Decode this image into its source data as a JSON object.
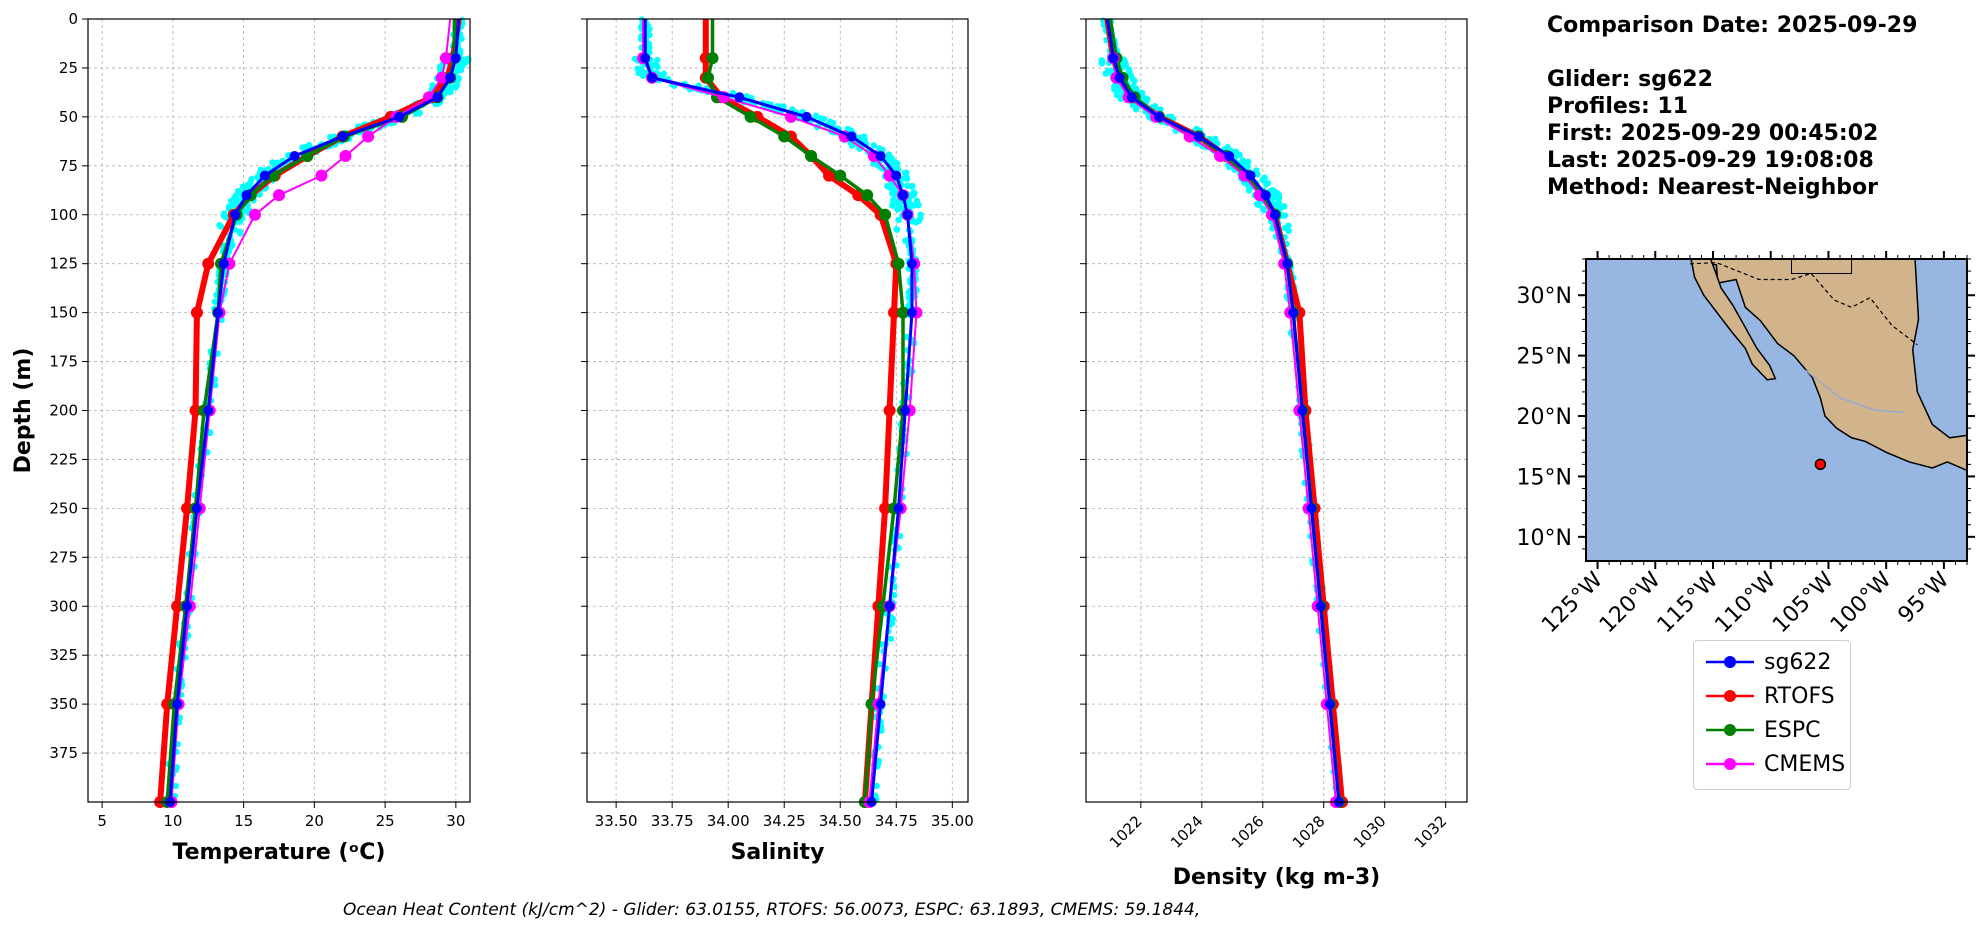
{
  "info": {
    "comparison": "Comparison Date: 2025-09-29",
    "glider": "Glider: sg622",
    "profiles": "Profiles: 11",
    "first": "First: 2025-09-29 00:45:02",
    "last": "Last: 2025-09-29 19:08:08",
    "method": "Method: Nearest-Neighbor"
  },
  "footer": "Ocean Heat Content (kJ/cm^2) - Glider: 63.0155,  RTOFS: 56.0073,  ESPC: 63.1893,  CMEMS: 59.1844,",
  "legend": [
    {
      "name": "sg622",
      "color": "#0000ff"
    },
    {
      "name": "RTOFS",
      "color": "#ff0000"
    },
    {
      "name": "ESPC",
      "color": "#008000"
    },
    {
      "name": "CMEMS",
      "color": "#ff00ff"
    }
  ],
  "chart_data": [
    {
      "type": "line",
      "xlabel": "Temperature (ᵒC)",
      "ylabel": "Depth (m)",
      "xlim": [
        4,
        31
      ],
      "ylim": [
        400,
        0
      ],
      "xticks": [
        5,
        10,
        15,
        20,
        25,
        30
      ],
      "yticks": [
        0,
        25,
        50,
        75,
        100,
        125,
        150,
        175,
        200,
        225,
        250,
        275,
        300,
        325,
        350,
        375
      ],
      "grid": true,
      "depth": [
        0,
        20,
        30,
        40,
        50,
        60,
        70,
        80,
        90,
        100,
        125,
        150,
        200,
        250,
        300,
        350,
        400
      ],
      "series": [
        {
          "name": "sg622",
          "color": "#0000ff",
          "values": [
            30.2,
            30.0,
            29.6,
            28.7,
            26.0,
            22.0,
            18.6,
            16.5,
            15.2,
            14.4,
            13.6,
            13.2,
            12.5,
            11.7,
            11.0,
            10.3,
            9.8
          ]
        },
        {
          "name": "RTOFS",
          "color": "#ff0000",
          "values": [
            30.2,
            29.8,
            29.4,
            28.3,
            25.4,
            22.0,
            19.5,
            17.2,
            15.5,
            14.3,
            12.5,
            11.7,
            11.6,
            11.0,
            10.3,
            9.6,
            9.1
          ]
        },
        {
          "name": "ESPC",
          "color": "#008000",
          "values": [
            29.9,
            29.9,
            29.6,
            28.7,
            26.2,
            22.1,
            19.5,
            17.1,
            15.5,
            14.5,
            13.4,
            13.2,
            12.2,
            11.6,
            10.9,
            10.1,
            9.6
          ]
        },
        {
          "name": "CMEMS",
          "color": "#ff00ff",
          "values": [
            29.6,
            29.3,
            29.0,
            28.1,
            25.8,
            23.8,
            22.2,
            20.5,
            17.5,
            15.8,
            14.0,
            13.3,
            12.6,
            11.9,
            11.2,
            10.4,
            9.9
          ]
        }
      ]
    },
    {
      "type": "line",
      "xlabel": "Salinity",
      "xlim": [
        33.37,
        35.07
      ],
      "ylim": [
        400,
        0
      ],
      "xticks": [
        "33.50",
        "33.75",
        "34.00",
        "34.25",
        "34.50",
        "34.75",
        "35.00"
      ],
      "grid": true,
      "depth": [
        0,
        20,
        30,
        40,
        50,
        60,
        70,
        80,
        90,
        100,
        125,
        150,
        200,
        250,
        300,
        350,
        400
      ],
      "series": [
        {
          "name": "sg622",
          "color": "#0000ff",
          "values": [
            33.63,
            33.63,
            33.66,
            34.05,
            34.35,
            34.55,
            34.68,
            34.75,
            34.78,
            34.8,
            34.82,
            34.82,
            34.79,
            34.76,
            34.72,
            34.68,
            34.64
          ]
        },
        {
          "name": "RTOFS",
          "color": "#ff0000",
          "values": [
            33.9,
            33.9,
            33.9,
            33.97,
            34.13,
            34.28,
            34.37,
            34.45,
            34.58,
            34.68,
            34.75,
            34.74,
            34.72,
            34.7,
            34.67,
            34.64,
            34.61
          ]
        },
        {
          "name": "ESPC",
          "color": "#008000",
          "values": [
            33.93,
            33.93,
            33.91,
            33.95,
            34.1,
            34.25,
            34.37,
            34.5,
            34.62,
            34.7,
            34.76,
            34.78,
            34.78,
            34.74,
            34.69,
            34.64,
            34.61
          ]
        },
        {
          "name": "CMEMS",
          "color": "#ff00ff",
          "values": [
            33.62,
            33.62,
            33.66,
            33.98,
            34.28,
            34.52,
            34.65,
            34.72,
            34.78,
            34.8,
            34.83,
            34.84,
            34.81,
            34.77,
            34.72,
            34.67,
            34.63
          ]
        }
      ]
    },
    {
      "type": "line",
      "xlabel": "Density (kg m-3)",
      "xlim": [
        1020.2,
        1032.7
      ],
      "ylim": [
        400,
        0
      ],
      "xticks": [
        1022,
        1024,
        1026,
        1028,
        1030,
        1032
      ],
      "grid": true,
      "depth": [
        0,
        20,
        30,
        40,
        50,
        60,
        70,
        80,
        90,
        100,
        125,
        150,
        200,
        250,
        300,
        350,
        400
      ],
      "series": [
        {
          "name": "sg622",
          "color": "#0000ff",
          "values": [
            1020.9,
            1021.1,
            1021.3,
            1021.7,
            1022.6,
            1023.9,
            1024.9,
            1025.6,
            1026.1,
            1026.4,
            1026.8,
            1027.0,
            1027.3,
            1027.6,
            1027.9,
            1028.2,
            1028.5
          ]
        },
        {
          "name": "RTOFS",
          "color": "#ff0000",
          "values": [
            1020.9,
            1021.1,
            1021.3,
            1021.7,
            1022.6,
            1023.9,
            1024.8,
            1025.5,
            1026.0,
            1026.4,
            1026.8,
            1027.2,
            1027.4,
            1027.7,
            1028.0,
            1028.3,
            1028.6
          ]
        },
        {
          "name": "ESPC",
          "color": "#008000",
          "values": [
            1021.0,
            1021.2,
            1021.4,
            1021.8,
            1022.6,
            1023.9,
            1024.8,
            1025.5,
            1026.0,
            1026.4,
            1026.8,
            1027.0,
            1027.3,
            1027.6,
            1027.9,
            1028.2,
            1028.5
          ]
        },
        {
          "name": "CMEMS",
          "color": "#ff00ff",
          "values": [
            1020.9,
            1021.1,
            1021.2,
            1021.6,
            1022.5,
            1023.6,
            1024.6,
            1025.4,
            1025.9,
            1026.3,
            1026.7,
            1026.9,
            1027.2,
            1027.5,
            1027.8,
            1028.1,
            1028.4
          ]
        }
      ]
    },
    {
      "type": "map",
      "lat_ticks": [
        "10°N",
        "15°N",
        "20°N",
        "25°N",
        "30°N"
      ],
      "lon_ticks": [
        "125°W",
        "120°W",
        "115°W",
        "110°W",
        "105°W",
        "100°W",
        "95°W"
      ],
      "lon_range": [
        -126,
        -93
      ],
      "lat_range": [
        8,
        33
      ],
      "glider_position": {
        "lon": -105.7,
        "lat": 16.0
      },
      "colors": {
        "ocean": "#97b6e1",
        "land": "#d2b48c"
      }
    }
  ]
}
